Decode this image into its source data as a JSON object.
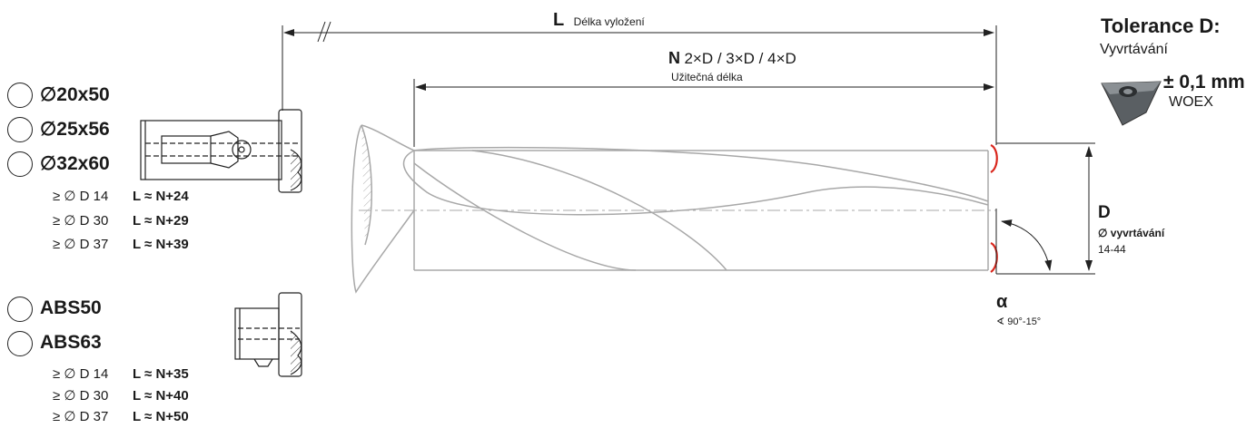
{
  "dimension_L": {
    "symbol": "L",
    "label": "Délka vyložení"
  },
  "dimension_N": {
    "symbol": "N",
    "multiples": "2×D / 3×D / 4×D",
    "label": "Užitečná délka"
  },
  "tolerance": {
    "title": "Tolerance D:",
    "subtitle": "Vyvrtávání",
    "value": "± 0,1 mm",
    "insert": "WOEX"
  },
  "dimension_D": {
    "symbol": "D",
    "label": "∅ vyvrtávání",
    "range": "14-44"
  },
  "angle": {
    "symbol": "α",
    "label": "∢ 90°-15°"
  },
  "shank_options_1": [
    {
      "label": "∅20x50"
    },
    {
      "label": "∅25x56"
    },
    {
      "label": "∅32x60"
    }
  ],
  "length_rules_1": [
    {
      "condition": "≥ ∅ D 14",
      "formula": "L ≈ N+24"
    },
    {
      "condition": "≥ ∅ D 30",
      "formula": "L ≈ N+29"
    },
    {
      "condition": "≥ ∅ D 37",
      "formula": "L ≈ N+39"
    }
  ],
  "shank_options_2": [
    {
      "label": "ABS50"
    },
    {
      "label": "ABS63"
    }
  ],
  "length_rules_2": [
    {
      "condition": "≥ ∅ D 14",
      "formula": "L ≈ N+35"
    },
    {
      "condition": "≥ ∅ D 30",
      "formula": "L ≈ N+40"
    },
    {
      "condition": "≥ ∅ D 37",
      "formula": "L ≈ N+50"
    }
  ],
  "colors": {
    "line": "#222222",
    "drill": "#a8a8a8",
    "insert_mark": "#d9261c"
  }
}
